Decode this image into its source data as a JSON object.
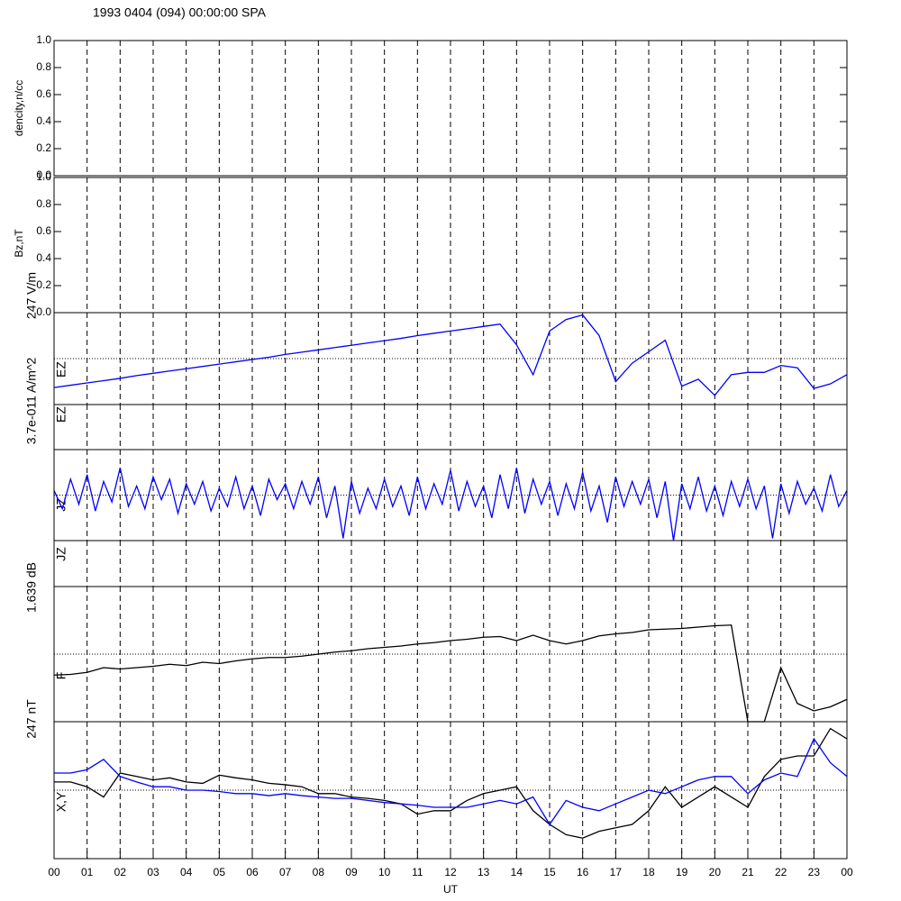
{
  "title": "1993 0404 (094) 00:00:00 SPA",
  "x_axis": {
    "xlabel": "UT",
    "xlim": [
      0,
      24
    ],
    "xticks": [
      {
        "value": 0,
        "label": "00"
      },
      {
        "value": 1,
        "label": "01"
      },
      {
        "value": 2,
        "label": "02"
      },
      {
        "value": 3,
        "label": "03"
      },
      {
        "value": 4,
        "label": "04"
      },
      {
        "value": 5,
        "label": "05"
      },
      {
        "value": 6,
        "label": "06"
      },
      {
        "value": 7,
        "label": "07"
      },
      {
        "value": 8,
        "label": "08"
      },
      {
        "value": 9,
        "label": "09"
      },
      10,
      11,
      12,
      13,
      14,
      15,
      16,
      17,
      18,
      19,
      20,
      21,
      22,
      23,
      {
        "value": 24,
        "label": "00"
      }
    ]
  },
  "chart_data": [
    {
      "type": "line",
      "ylabel": "dencity,n/cc",
      "ylim": [
        0,
        1
      ],
      "yticks": [
        {
          "value": 0,
          "label": "0.0"
        },
        0.2,
        0.4,
        0.6,
        0.8,
        {
          "value": 1,
          "label": "1.0"
        }
      ],
      "series": []
    },
    {
      "type": "line",
      "ylabel": "Bz,nT",
      "ylim": [
        0,
        1
      ],
      "yticks": [
        {
          "value": 0,
          "label": "0.0"
        },
        0.2,
        0.4,
        0.6,
        0.8,
        {
          "value": 1,
          "label": "1.0"
        }
      ],
      "series": []
    },
    {
      "type": "line",
      "ylabel": "EZ",
      "unit_label": "247 V/m",
      "ylim": [
        -1,
        1
      ],
      "zero_line": true,
      "x": [
        0,
        0.5,
        1,
        1.5,
        2,
        2.5,
        3,
        3.5,
        4,
        4.5,
        5,
        5.5,
        6,
        6.5,
        7,
        7.5,
        8,
        8.5,
        9,
        9.5,
        10,
        10.5,
        11,
        11.5,
        12,
        12.5,
        13,
        13.5,
        14,
        14.5,
        15,
        15.5,
        16,
        16.5,
        17,
        17.5,
        18,
        18.5,
        19,
        19.5,
        20,
        20.5,
        21,
        21.5,
        22,
        22.5,
        23,
        23.5,
        24
      ],
      "series": [
        {
          "color": "#0000ff",
          "values": [
            -0.63,
            -0.58,
            -0.53,
            -0.48,
            -0.43,
            -0.37,
            -0.32,
            -0.27,
            -0.22,
            -0.17,
            -0.12,
            -0.07,
            -0.02,
            0.03,
            0.09,
            0.14,
            0.19,
            0.24,
            0.29,
            0.34,
            0.39,
            0.44,
            0.5,
            0.55,
            0.6,
            0.65,
            0.7,
            0.75,
            0.3,
            -0.35,
            0.6,
            0.85,
            0.95,
            0.5,
            -0.5,
            -0.1,
            0.15,
            0.4,
            -0.6,
            -0.45,
            -0.8,
            -0.35,
            -0.3,
            -0.3,
            -0.15,
            -0.2,
            -0.65,
            -0.55,
            -0.35
          ]
        }
      ]
    },
    {
      "type": "line",
      "ylabel": "EZ",
      "unit_label": "3.7e-011 A/m^2",
      "series": []
    },
    {
      "type": "line",
      "ylabel": "JZ",
      "ylim": [
        -1,
        1
      ],
      "zero_line": true,
      "x": [
        0,
        0.25,
        0.5,
        0.75,
        1,
        1.25,
        1.5,
        1.75,
        2,
        2.25,
        2.5,
        2.75,
        3,
        3.25,
        3.5,
        3.75,
        4,
        4.25,
        4.5,
        4.75,
        5,
        5.25,
        5.5,
        5.75,
        6,
        6.25,
        6.5,
        6.75,
        7,
        7.25,
        7.5,
        7.75,
        8,
        8.25,
        8.5,
        8.75,
        9,
        9.25,
        9.5,
        9.75,
        10,
        10.25,
        10.5,
        10.75,
        11,
        11.25,
        11.5,
        11.75,
        12,
        12.25,
        12.5,
        12.75,
        13,
        13.25,
        13.5,
        13.75,
        14,
        14.25,
        14.5,
        14.75,
        15,
        15.25,
        15.5,
        15.75,
        16,
        16.25,
        16.5,
        16.75,
        17,
        17.25,
        17.5,
        17.75,
        18,
        18.25,
        18.5,
        18.75,
        19,
        19.25,
        19.5,
        19.75,
        20,
        20.25,
        20.5,
        20.75,
        21,
        21.25,
        21.5,
        21.75,
        22,
        22.25,
        22.5,
        22.75,
        23,
        23.25,
        23.5,
        23.75,
        24
      ],
      "series": [
        {
          "color": "#0000ff",
          "values": [
            0.1,
            -0.3,
            0.35,
            -0.2,
            0.45,
            -0.35,
            0.3,
            -0.15,
            0.6,
            -0.25,
            0.2,
            -0.3,
            0.4,
            -0.1,
            0.35,
            -0.4,
            0.25,
            -0.2,
            0.3,
            -0.35,
            0.15,
            -0.25,
            0.4,
            -0.3,
            0.2,
            -0.45,
            0.35,
            -0.1,
            0.25,
            -0.3,
            0.3,
            -0.2,
            0.4,
            -0.5,
            0.2,
            -0.95,
            0.3,
            -0.4,
            0.15,
            -0.3,
            0.35,
            -0.25,
            0.2,
            -0.45,
            0.4,
            -0.3,
            0.25,
            -0.2,
            0.55,
            -0.35,
            0.3,
            -0.25,
            0.2,
            -0.5,
            0.45,
            -0.3,
            0.6,
            -0.4,
            0.35,
            -0.2,
            0.3,
            -0.45,
            0.25,
            -0.3,
            0.5,
            -0.35,
            0.2,
            -0.6,
            0.4,
            -0.25,
            0.3,
            -0.2,
            0.35,
            -0.5,
            0.3,
            -1.0,
            0.25,
            -0.3,
            0.4,
            -0.35,
            0.2,
            -0.45,
            0.3,
            -0.25,
            0.35,
            -0.3,
            0.2,
            -0.95,
            0.25,
            -0.4,
            0.3,
            -0.2,
            0.15,
            -0.35,
            0.45,
            -0.25,
            0.1
          ]
        }
      ]
    },
    {
      "type": "line",
      "ylabel": "JZ",
      "unit_label": "1.639 dB",
      "series": []
    },
    {
      "type": "line",
      "ylabel": "F",
      "unit_label": "247 nT",
      "ylim": [
        -1,
        1
      ],
      "zero_line": true,
      "x": [
        0,
        0.5,
        1,
        1.5,
        2,
        2.5,
        3,
        3.5,
        4,
        4.5,
        5,
        5.5,
        6,
        6.5,
        7,
        7.5,
        8,
        8.5,
        9,
        9.5,
        10,
        10.5,
        11,
        11.5,
        12,
        12.5,
        13,
        13.5,
        14,
        14.5,
        15,
        15.5,
        16,
        16.5,
        17,
        17.5,
        18,
        18.5,
        19,
        19.5,
        20,
        20.5,
        21,
        21.5,
        22,
        22.5,
        23,
        23.5,
        24
      ],
      "series": [
        {
          "color": "#000000",
          "values": [
            -0.31,
            -0.3,
            -0.27,
            -0.2,
            -0.22,
            -0.2,
            -0.18,
            -0.15,
            -0.17,
            -0.12,
            -0.14,
            -0.1,
            -0.07,
            -0.05,
            -0.05,
            -0.03,
            0,
            0.03,
            0.05,
            0.08,
            0.1,
            0.12,
            0.15,
            0.17,
            0.2,
            0.22,
            0.25,
            0.26,
            0.2,
            0.28,
            0.2,
            0.15,
            0.2,
            0.27,
            0.3,
            0.32,
            0.36,
            0.37,
            0.38,
            0.4,
            0.42,
            0.43,
            -1,
            -1,
            -0.2,
            -0.73,
            -0.84,
            -0.78,
            -0.67
          ]
        }
      ]
    },
    {
      "type": "line",
      "ylabel": "X,Y",
      "ylim": [
        -1,
        1
      ],
      "zero_line": true,
      "x": [
        0,
        0.5,
        1,
        1.5,
        2,
        2.5,
        3,
        3.5,
        4,
        4.5,
        5,
        5.5,
        6,
        6.5,
        7,
        7.5,
        8,
        8.5,
        9,
        9.5,
        10,
        10.5,
        11,
        11.5,
        12,
        12.5,
        13,
        13.5,
        14,
        14.5,
        15,
        15.5,
        16,
        16.5,
        17,
        17.5,
        18,
        18.5,
        19,
        19.5,
        20,
        20.5,
        21,
        21.5,
        22,
        22.5,
        23,
        23.5,
        24
      ],
      "series": [
        {
          "color": "#000000",
          "values": [
            0.12,
            0.12,
            0.05,
            -0.1,
            0.25,
            0.2,
            0.15,
            0.18,
            0.12,
            0.1,
            0.22,
            0.18,
            0.15,
            0.1,
            0.08,
            0.05,
            -0.05,
            -0.05,
            -0.1,
            -0.12,
            -0.15,
            -0.2,
            -0.35,
            -0.3,
            -0.3,
            -0.15,
            -0.05,
            0,
            0.05,
            -0.3,
            -0.5,
            -0.65,
            -0.7,
            -0.6,
            -0.55,
            -0.5,
            -0.3,
            0.05,
            -0.25,
            -0.1,
            0.05,
            -0.1,
            -0.25,
            0.2,
            0.45,
            0.5,
            0.5,
            0.9,
            0.75
          ]
        },
        {
          "color": "#0000ff",
          "values": [
            0.25,
            0.25,
            0.3,
            0.45,
            0.2,
            0.12,
            0.05,
            0.05,
            0,
            0,
            -0.02,
            -0.05,
            -0.05,
            -0.08,
            -0.05,
            -0.08,
            -0.1,
            -0.12,
            -0.12,
            -0.15,
            -0.18,
            -0.2,
            -0.22,
            -0.25,
            -0.25,
            -0.25,
            -0.2,
            -0.15,
            -0.2,
            -0.1,
            -0.5,
            -0.15,
            -0.25,
            -0.3,
            -0.2,
            -0.1,
            0,
            -0.05,
            0.05,
            0.15,
            0.2,
            0.2,
            -0.05,
            0.15,
            0.25,
            0.2,
            0.75,
            0.4,
            0.2
          ]
        }
      ]
    }
  ]
}
